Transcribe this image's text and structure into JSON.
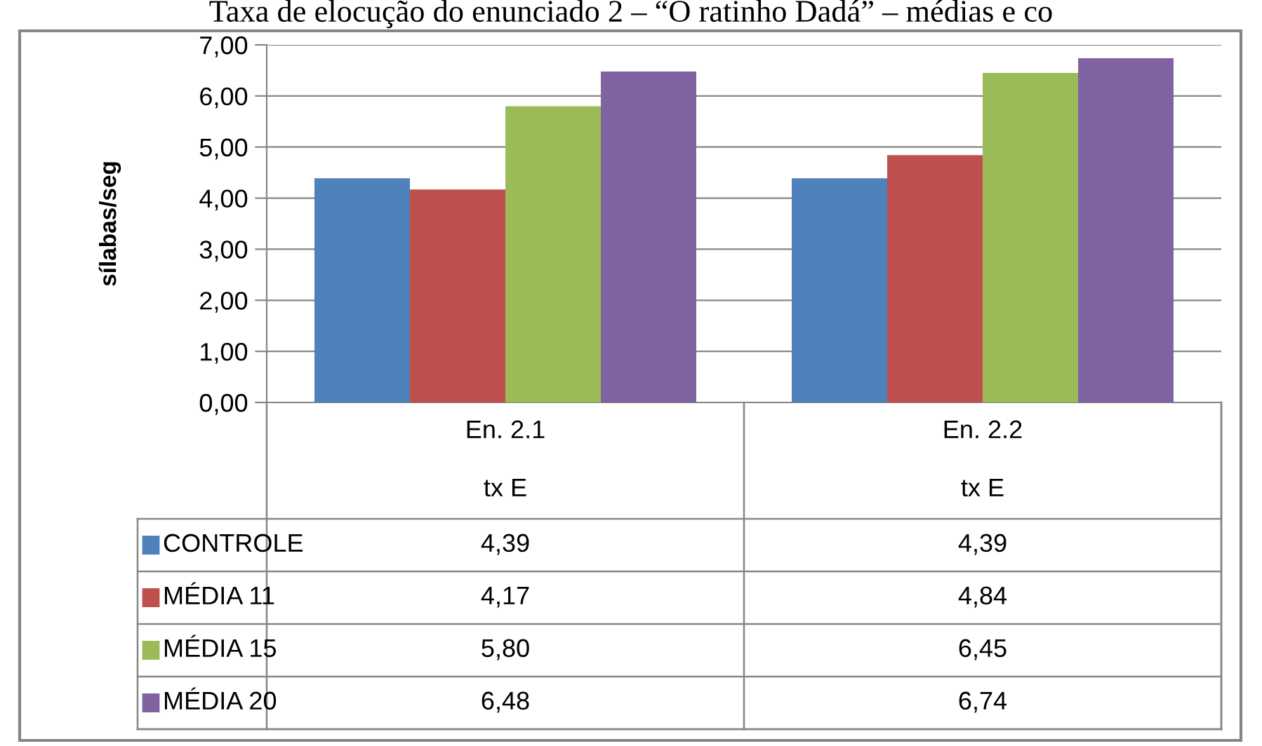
{
  "chart_data": {
    "type": "bar",
    "title": "Taxa de elocução do enunciado 2 – “O ratinho Dadá” – médias e co",
    "ylabel": "sílabas/seg",
    "categories": [
      "En. 2.1\ntx E",
      "En. 2.2\ntx E"
    ],
    "series": [
      {
        "name": "CONTROLE",
        "color": "#4f81bd",
        "values": [
          4.39,
          4.39
        ],
        "value_labels": [
          "4,39",
          "4,39"
        ]
      },
      {
        "name": "MÉDIA 11",
        "color": "#c0504d",
        "values": [
          4.17,
          4.84
        ],
        "value_labels": [
          "4,17",
          "4,84"
        ]
      },
      {
        "name": "MÉDIA 15",
        "color": "#9bbb59",
        "values": [
          5.8,
          6.45
        ],
        "value_labels": [
          "5,80",
          "6,45"
        ]
      },
      {
        "name": "MÉDIA 20",
        "color": "#8064a2",
        "values": [
          6.48,
          6.74
        ],
        "value_labels": [
          "6,48",
          "6,74"
        ]
      }
    ],
    "ylim": [
      0,
      7
    ],
    "yticks": [
      {
        "value": 0,
        "label": "0,00"
      },
      {
        "value": 1,
        "label": "1,00"
      },
      {
        "value": 2,
        "label": "2,00"
      },
      {
        "value": 3,
        "label": "3,00"
      },
      {
        "value": 4,
        "label": "4,00"
      },
      {
        "value": 5,
        "label": "5,00"
      },
      {
        "value": 6,
        "label": "6,00"
      },
      {
        "value": 7,
        "label": "7,00"
      }
    ],
    "grid": "y",
    "legend": "bottom"
  }
}
